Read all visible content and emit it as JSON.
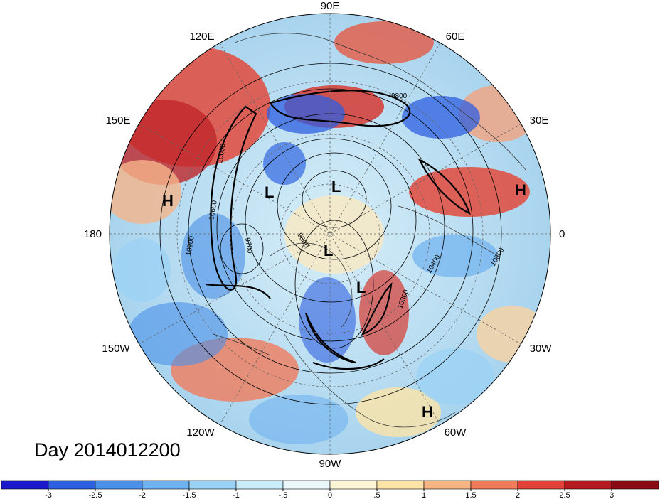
{
  "title": "Day 2014012200",
  "map": {
    "projection": "north-polar-stereographic",
    "longitude_labels": [
      "90E",
      "60E",
      "30E",
      "0",
      "30W",
      "60W",
      "90W",
      "120W",
      "150W",
      "180",
      "150E",
      "120E"
    ],
    "pressure_systems": [
      {
        "type": "H",
        "label": "H"
      },
      {
        "type": "H",
        "label": "H"
      },
      {
        "type": "H",
        "label": "H"
      },
      {
        "type": "L",
        "label": "L"
      },
      {
        "type": "L",
        "label": "L"
      },
      {
        "type": "L",
        "label": "L"
      },
      {
        "type": "L",
        "label": "L"
      }
    ],
    "contour_labels": [
      "10900",
      "10800",
      "10400",
      "9700",
      "9800",
      "10000",
      "10600",
      "10300",
      "9800"
    ]
  },
  "colorbar": {
    "ticks": [
      "-3",
      "-2.5",
      "-2",
      "-1.5",
      "-1",
      "-.5",
      "0",
      ".5",
      "1",
      "1.5",
      "2",
      "2.5",
      "3"
    ],
    "colors": [
      "#1a1acc",
      "#2e5fe0",
      "#4a90e8",
      "#6fb2f0",
      "#9ad2f5",
      "#c9ecfa",
      "#eaf8fc",
      "#fdf6d6",
      "#fce3a8",
      "#f7b585",
      "#f07c5c",
      "#e3403a",
      "#b51a20",
      "#8a0b15"
    ]
  }
}
